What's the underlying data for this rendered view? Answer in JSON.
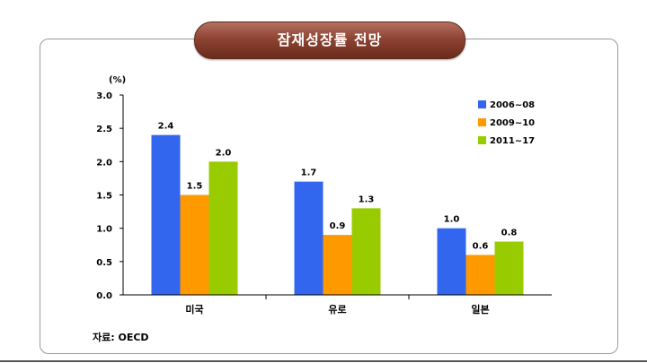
{
  "title": "잠재성장률 전망",
  "source": "자료: OECD",
  "chart_data": {
    "type": "bar",
    "title": "잠재성장률 전망",
    "ylabel": "(%)",
    "xlabel": "",
    "categories": [
      "미국",
      "유로",
      "일본"
    ],
    "series": [
      {
        "name": "2006~08",
        "values": [
          2.4,
          1.7,
          1.0
        ],
        "color": "#3366ee"
      },
      {
        "name": "2009~10",
        "values": [
          1.5,
          0.9,
          0.6
        ],
        "color": "#ff9900"
      },
      {
        "name": "2011~17",
        "values": [
          2.0,
          1.3,
          0.8
        ],
        "color": "#99cc00"
      }
    ],
    "ylim": [
      0,
      3.0
    ],
    "yticks": [
      "0.0",
      "0.5",
      "1.0",
      "1.5",
      "2.0",
      "2.5",
      "3.0"
    ],
    "grid": false,
    "legend_position": "top-right"
  }
}
